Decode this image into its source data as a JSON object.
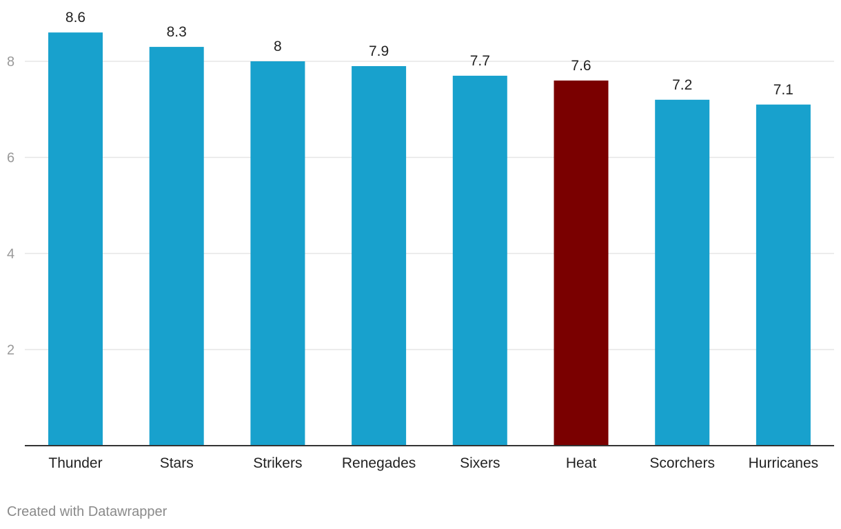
{
  "chart_data": {
    "type": "bar",
    "categories": [
      "Thunder",
      "Stars",
      "Strikers",
      "Renegades",
      "Sixers",
      "Heat",
      "Scorchers",
      "Hurricanes"
    ],
    "values": [
      8.6,
      8.3,
      8.0,
      7.9,
      7.7,
      7.6,
      7.2,
      7.1
    ],
    "data_labels": [
      "8.6",
      "8.3",
      "8",
      "7.9",
      "7.7",
      "7.6",
      "7.2",
      "7.1"
    ],
    "highlight_category": "Heat",
    "ylim": [
      0,
      8.6
    ],
    "yticks": [
      2,
      4,
      6,
      8
    ],
    "grid": true,
    "legend": "none",
    "colors": {
      "bar": "#18a1cd",
      "highlight": "#7a0000",
      "gridline": "#e6e6e6",
      "baseline": "#333333",
      "tick_label": "#999999",
      "category_label": "#222222",
      "value_label": "#222222"
    }
  },
  "footer": "Created with Datawrapper"
}
